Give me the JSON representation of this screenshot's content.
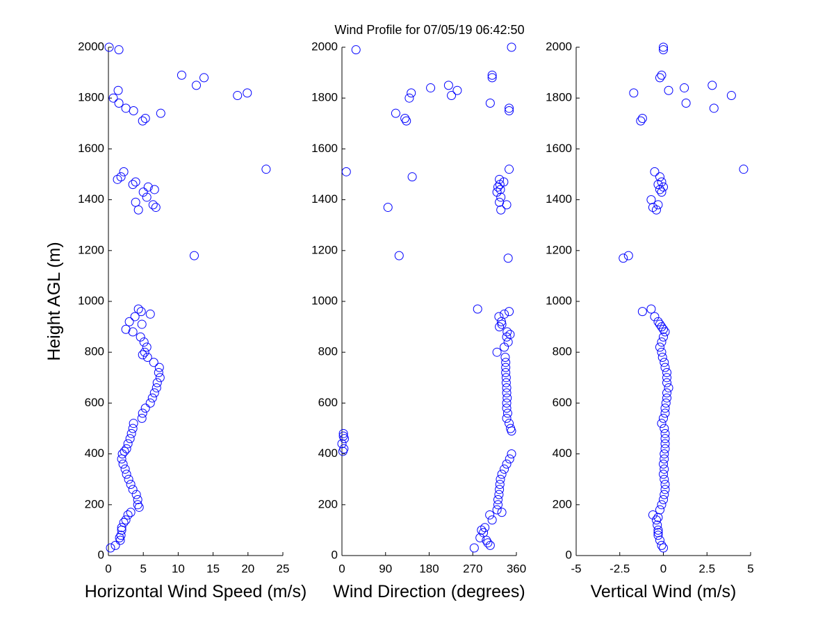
{
  "chart_data": [
    {
      "type": "scatter",
      "title": "Wind Profile for  07/05/19 06:42:50",
      "x_label": "Horizontal Wind Speed (m/s)",
      "y_label": "Height AGL (m)",
      "color": "#0000ff",
      "xlim": [
        0,
        25
      ],
      "xticks": [
        0,
        5,
        10,
        15,
        20,
        25
      ],
      "ylim": [
        0,
        2000
      ],
      "yticks": [
        0,
        200,
        400,
        600,
        800,
        1000,
        1200,
        1400,
        1600,
        1800,
        2000
      ],
      "x": [
        0.3,
        1.0,
        1.7,
        1.6,
        1.8,
        1.9,
        1.9,
        2.2,
        2.5,
        2.8,
        3.2,
        4.4,
        4.2,
        4.2,
        4.0,
        3.5,
        3.2,
        2.9,
        2.6,
        2.4,
        2.1,
        1.9,
        2.0,
        2.3,
        2.6,
        2.8,
        3.1,
        3.3,
        3.5,
        3.6,
        4.8,
        4.9,
        5.3,
        6.0,
        6.3,
        6.6,
        6.9,
        7.0,
        7.4,
        7.2,
        7.3,
        6.5,
        5.6,
        4.9,
        5.2,
        5.5,
        5.1,
        4.6,
        3.5,
        2.5,
        4.8,
        3.0,
        3.8,
        6.0,
        4.7,
        4.3,
        12.3,
        4.3,
        6.8,
        6.4,
        3.9,
        5.5,
        5.0,
        6.6,
        5.7,
        3.5,
        3.9,
        1.3,
        1.8,
        2.2,
        22.6,
        4.9,
        5.3,
        7.5,
        3.6,
        2.5,
        1.5,
        0.7,
        18.5,
        19.9,
        1.4,
        12.6,
        13.7,
        10.5,
        1.5,
        0.1
      ],
      "y": [
        30,
        40,
        60,
        70,
        80,
        100,
        110,
        130,
        140,
        160,
        170,
        190,
        200,
        220,
        240,
        260,
        280,
        300,
        320,
        340,
        360,
        380,
        400,
        410,
        420,
        440,
        460,
        480,
        500,
        520,
        540,
        560,
        580,
        600,
        620,
        640,
        660,
        680,
        700,
        720,
        740,
        760,
        780,
        790,
        800,
        820,
        840,
        860,
        880,
        890,
        910,
        920,
        940,
        950,
        960,
        970,
        1180,
        1360,
        1370,
        1380,
        1390,
        1410,
        1430,
        1440,
        1450,
        1460,
        1470,
        1480,
        1490,
        1510,
        1520,
        1710,
        1720,
        1740,
        1750,
        1760,
        1780,
        1800,
        1810,
        1820,
        1830,
        1850,
        1880,
        1890,
        1990,
        2000
      ]
    },
    {
      "type": "scatter",
      "x_label": "Wind Direction (degrees)",
      "color": "#0000ff",
      "xlim": [
        0,
        360
      ],
      "xticks": [
        0,
        90,
        180,
        270,
        360
      ],
      "ylim": [
        0,
        2000
      ],
      "yticks": [
        0,
        200,
        400,
        600,
        800,
        1000,
        1200,
        1400,
        1600,
        1800,
        2000
      ],
      "x": [
        273,
        306,
        301,
        298,
        285,
        292,
        288,
        295,
        310,
        305,
        330,
        320,
        322,
        322,
        324,
        325,
        326,
        327,
        330,
        335,
        340,
        346,
        350,
        2,
        4,
        0,
        5,
        3,
        3,
        350,
        348,
        345,
        340,
        342,
        340,
        340,
        341,
        340,
        340,
        339,
        339,
        338,
        338,
        338,
        337,
        320,
        335,
        343,
        340,
        347,
        341,
        325,
        330,
        329,
        324,
        335,
        345,
        280,
        343,
        118,
        328,
        95,
        340,
        325,
        328,
        320,
        327,
        322,
        326,
        334,
        325,
        145,
        9,
        345,
        133,
        130,
        111,
        345,
        345,
        306,
        139,
        226,
        143,
        238,
        183,
        220,
        310,
        310,
        29,
        350
      ],
      "y": [
        30,
        40,
        50,
        60,
        70,
        90,
        100,
        110,
        140,
        160,
        170,
        180,
        200,
        220,
        240,
        260,
        280,
        300,
        320,
        340,
        360,
        380,
        400,
        410,
        420,
        440,
        460,
        470,
        480,
        490,
        500,
        520,
        540,
        560,
        580,
        600,
        620,
        640,
        660,
        680,
        700,
        720,
        740,
        760,
        780,
        800,
        820,
        840,
        860,
        870,
        880,
        900,
        910,
        920,
        940,
        950,
        960,
        970,
        1170,
        1180,
        1360,
        1370,
        1380,
        1390,
        1410,
        1430,
        1440,
        1450,
        1460,
        1470,
        1480,
        1490,
        1510,
        1520,
        1710,
        1720,
        1740,
        1750,
        1760,
        1780,
        1800,
        1810,
        1820,
        1830,
        1840,
        1850,
        1880,
        1890,
        1990,
        2000
      ]
    },
    {
      "type": "scatter",
      "x_label": "Vertical Wind (m/s)",
      "color": "#0000ff",
      "xlim": [
        -5,
        5
      ],
      "xticks": [
        -5,
        -2.5,
        0,
        2.5,
        5
      ],
      "ylim": [
        0,
        2000
      ],
      "yticks": [
        0,
        200,
        400,
        600,
        800,
        1000,
        1200,
        1400,
        1600,
        1800,
        2000
      ],
      "x": [
        0,
        -0.1,
        -0.2,
        -0.3,
        -0.3,
        -0.3,
        -0.35,
        -0.4,
        -0.3,
        -0.6,
        -0.2,
        -0.1,
        0,
        0.05,
        0.1,
        0.1,
        0.05,
        0,
        0.05,
        0,
        0.05,
        0.05,
        0.1,
        0.1,
        0.1,
        0.1,
        0.05,
        -0.1,
        0,
        0.1,
        0.1,
        0.15,
        0.2,
        0.2,
        0.3,
        0.2,
        0.2,
        0.2,
        0.1,
        0.05,
        -0.05,
        -0.1,
        -0.2,
        -0.1,
        0,
        0.1,
        0,
        -0.1,
        -0.2,
        -0.3,
        -0.5,
        -1.2,
        -0.7,
        -2.3,
        -2.0,
        -0.4,
        -0.6,
        -0.3,
        -0.7,
        -0.1,
        -0.2,
        0,
        -0.3,
        -0.1,
        -0.2,
        -0.5,
        4.6,
        -1.3,
        -1.2,
        2.9,
        1.3,
        3.9,
        -1.7,
        0.3,
        1.2,
        2.8,
        -0.2,
        -0.1,
        0,
        0
      ],
      "y": [
        30,
        40,
        60,
        80,
        90,
        100,
        120,
        140,
        150,
        160,
        180,
        200,
        220,
        240,
        260,
        280,
        300,
        320,
        340,
        360,
        380,
        400,
        420,
        440,
        460,
        480,
        500,
        520,
        540,
        560,
        580,
        600,
        620,
        640,
        660,
        680,
        700,
        720,
        740,
        760,
        780,
        800,
        820,
        840,
        860,
        880,
        890,
        900,
        910,
        920,
        940,
        960,
        970,
        1170,
        1180,
        1360,
        1370,
        1380,
        1400,
        1430,
        1440,
        1450,
        1460,
        1470,
        1490,
        1510,
        1520,
        1710,
        1720,
        1760,
        1780,
        1810,
        1820,
        1830,
        1840,
        1850,
        1880,
        1890,
        1990,
        2000
      ]
    }
  ]
}
